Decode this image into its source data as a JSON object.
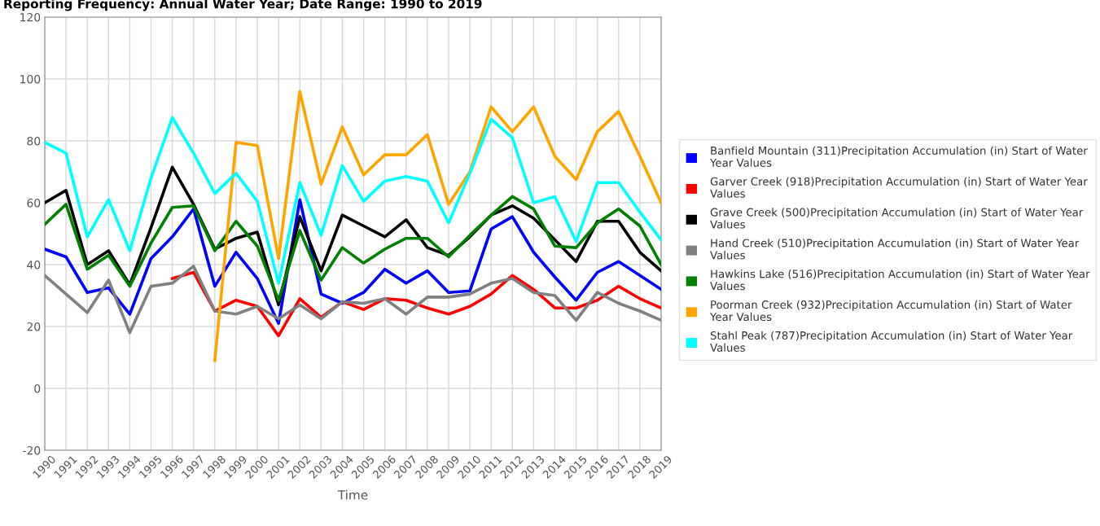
{
  "chart_data": {
    "type": "line",
    "title": "Reporting Frequency: Annual Water Year; Date Range: 1990 to 2019",
    "xlabel": "Time",
    "categories": [
      "1990",
      "1991",
      "1992",
      "1993",
      "1994",
      "1995",
      "1996",
      "1997",
      "1998",
      "1999",
      "2000",
      "2001",
      "2002",
      "2003",
      "2004",
      "2005",
      "2006",
      "2007",
      "2008",
      "2009",
      "2010",
      "2011",
      "2012",
      "2013",
      "2014",
      "2015",
      "2016",
      "2017",
      "2018",
      "2019"
    ],
    "ylim": [
      -20,
      120
    ],
    "yticks": [
      -20,
      0,
      20,
      40,
      60,
      80,
      100,
      120
    ],
    "grid": true,
    "legend": "right",
    "marker": "none",
    "line_style": "solid",
    "series": [
      {
        "name": "Banfield Mountain (311)Precipitation Accumulation (in) Start of Water Year Values",
        "color": "#0000ff",
        "values": [
          45,
          42.5,
          31,
          32.5,
          24,
          42,
          49,
          58,
          33,
          44,
          35.5,
          21,
          61,
          30.5,
          27.5,
          31,
          38.5,
          34,
          38,
          31,
          31.5,
          51.5,
          55.5,
          44,
          36,
          28.5,
          37.5,
          41,
          36.5,
          32
        ]
      },
      {
        "name": "Garver Creek (918)Precipitation Accumulation (in) Start of Water Year Values",
        "color": "#ff0000",
        "values": [
          null,
          null,
          null,
          null,
          null,
          null,
          35.5,
          37.5,
          25,
          28.5,
          26.5,
          17,
          29,
          23,
          28,
          25.5,
          29,
          28.5,
          26,
          24,
          26.5,
          30.5,
          36.5,
          32,
          26,
          26,
          28.5,
          33,
          29,
          26
        ]
      },
      {
        "name": "Grave Creek (500)Precipitation Accumulation (in) Start of Water Year Values",
        "color": "#000000",
        "values": [
          60,
          64,
          40,
          44.5,
          33.5,
          52,
          71.5,
          59.5,
          45,
          48.5,
          50.5,
          27,
          55.5,
          38,
          56,
          52.5,
          49,
          54.5,
          45.5,
          43,
          49,
          56,
          59,
          55,
          48,
          41,
          54,
          54,
          44,
          38
        ]
      },
      {
        "name": "Hand Creek (510)Precipitation Accumulation (in) Start of Water Year Values",
        "color": "#808080",
        "values": [
          36.5,
          30.5,
          24.5,
          35,
          18,
          33,
          34,
          39.5,
          25,
          24,
          26.5,
          22.5,
          27,
          22.5,
          28,
          27.5,
          29,
          24,
          29.5,
          29.5,
          30.5,
          34,
          35.5,
          31,
          30,
          22,
          31,
          27.5,
          25,
          22
        ]
      },
      {
        "name": "Hawkins Lake (516)Precipitation Accumulation (in) Start of Water Year Values",
        "color": "#008000",
        "values": [
          53,
          59.5,
          38.5,
          43,
          33,
          47,
          58.5,
          59,
          44.5,
          54,
          46,
          28.5,
          51,
          35,
          45.5,
          40.5,
          45,
          48.5,
          48.5,
          42.5,
          49.5,
          56,
          62,
          58,
          46,
          45.5,
          53.5,
          58,
          52.5,
          40
        ]
      },
      {
        "name": "Poorman Creek (932)Precipitation Accumulation (in) Start of Water Year Values",
        "color": "#ffa500",
        "values": [
          null,
          null,
          null,
          null,
          null,
          null,
          null,
          null,
          9,
          79.5,
          78.5,
          42,
          96,
          66,
          84.5,
          69,
          75.5,
          75.5,
          82,
          59.5,
          70,
          91,
          83,
          91,
          75,
          67.5,
          83,
          89.5,
          75,
          60
        ]
      },
      {
        "name": "Stahl Peak (787)Precipitation Accumulation (in) Start of Water Year Values",
        "color": "#00ffff",
        "values": [
          79.5,
          76,
          49,
          61,
          44.5,
          68,
          87.5,
          76,
          63,
          69.5,
          60.5,
          34,
          66.5,
          49.5,
          72,
          60.5,
          67,
          68.5,
          67,
          53.5,
          69.5,
          87,
          81,
          60,
          62,
          47.5,
          66.5,
          66.5,
          57,
          48
        ]
      }
    ]
  }
}
